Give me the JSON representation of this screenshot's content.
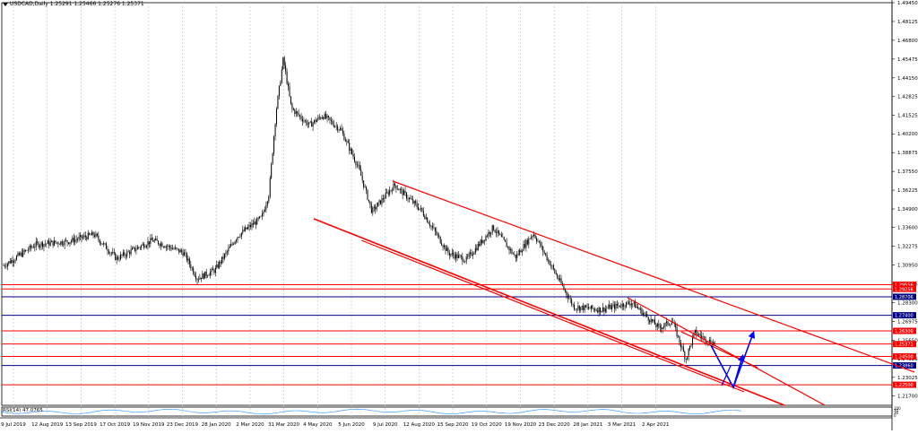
{
  "header": {
    "symbol_line": "USDCAD,Daily  1.25291 1.25466 1.25276 1.25371"
  },
  "indicator": {
    "label": "RSI(14) 47.0765",
    "levels": [
      "100",
      "70",
      "30",
      "0"
    ]
  },
  "colors": {
    "background": "#ffffff",
    "grid": "#c8c8c8",
    "candles": "#000000",
    "channel_red": "#ff0000",
    "support_red": "#ff0000",
    "level_blue": "#000080",
    "forecast_arrow": "#0000ff",
    "label_red_bg": "#ff0000",
    "label_blue_bg": "#000080"
  },
  "chart_data": {
    "type": "candlestick",
    "title": "USDCAD,Daily",
    "ohlc_last": {
      "open": 1.25291,
      "high": 1.25466,
      "low": 1.25276,
      "close": 1.25371
    },
    "ylim": [
      1.2105,
      1.4945
    ],
    "y_ticks": [
      "1.49450",
      "1.48125",
      "1.46800",
      "1.45475",
      "1.44150",
      "1.42825",
      "1.41525",
      "1.40200",
      "1.38875",
      "1.37550",
      "1.36225",
      "1.34900",
      "1.33600",
      "1.32275",
      "1.30950",
      "1.29625",
      "1.28300",
      "1.26975",
      "1.25650",
      "1.24325",
      "1.23025",
      "1.21700"
    ],
    "x_ticks": [
      "9 Jul 2019",
      "12 Aug 2019",
      "13 Sep 2019",
      "17 Oct 2019",
      "19 Nov 2019",
      "23 Dec 2019",
      "28 Jan 2020",
      "2 Mar 2020",
      "31 Mar 2020",
      "4 May 2020",
      "5 Jun 2020",
      "9 Jul 2020",
      "12 Aug 2020",
      "15 Sep 2020",
      "19 Oct 2020",
      "19 Nov 2020",
      "23 Dec 2020",
      "28 Jan 2021",
      "3 Mar 2021",
      "2 Apr 2021"
    ],
    "series": [
      {
        "x": [
          "9 Jul 2019",
          "12 Aug 2019",
          "13 Sep 2019",
          "17 Oct 2019",
          "19 Nov 2019",
          "23 Dec 2019",
          "28 Jan 2020",
          "2 Mar 2020",
          "31 Mar 2020",
          "4 May 2020",
          "5 Jun 2020",
          "9 Jul 2020",
          "12 Aug 2020",
          "15 Sep 2020",
          "19 Oct 2020",
          "19 Nov 2020",
          "23 Dec 2020",
          "28 Jan 2021",
          "3 Mar 2021",
          "2 Apr 2021"
        ],
        "y": [
          1.308,
          1.325,
          1.326,
          1.314,
          1.323,
          1.298,
          1.319,
          1.353,
          1.41,
          1.392,
          1.356,
          1.356,
          1.328,
          1.328,
          1.32,
          1.299,
          1.28,
          1.278,
          1.262,
          1.2537
        ]
      }
    ],
    "horizontal_levels": [
      {
        "label": "1.29556",
        "value": 1.29556,
        "color": "red"
      },
      {
        "label": "1.29256",
        "value": 1.29256,
        "color": "red"
      },
      {
        "label": "1.28706",
        "value": 1.28706,
        "color": "blue"
      },
      {
        "label": "1.27400",
        "value": 1.274,
        "color": "blue"
      },
      {
        "label": "1.26300",
        "value": 1.263,
        "color": "red"
      },
      {
        "label": "1.25371",
        "value": 1.25371,
        "color": "red"
      },
      {
        "label": "1.24500",
        "value": 1.245,
        "color": "red"
      },
      {
        "label": "1.23860",
        "value": 1.2386,
        "color": "blue"
      },
      {
        "label": "1.22500",
        "value": 1.225,
        "color": "red"
      }
    ],
    "grid": true
  }
}
